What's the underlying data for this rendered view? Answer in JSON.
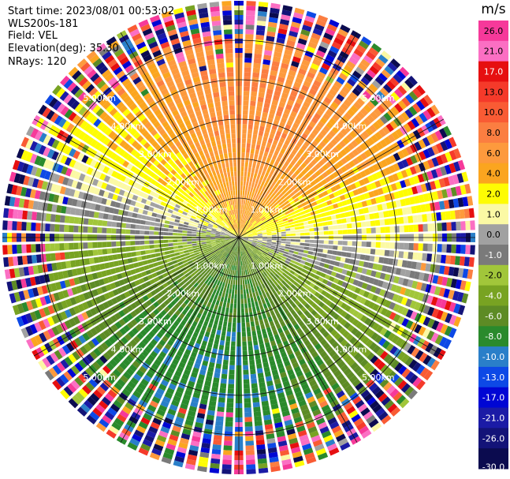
{
  "header": {
    "start_time": "Start time: 2023/08/01 00:53:02",
    "instrument": "WLS200s-181",
    "field": "Field: VEL",
    "elevation": "Elevation(deg): 35.30",
    "nrays": "NRays: 120"
  },
  "chart_data": {
    "type": "heatmap",
    "projection": "polar-ppi",
    "field": "VEL",
    "nrays": 120,
    "max_range_km": 6.0,
    "range_rings_km": [
      1.0,
      2.0,
      3.0,
      4.0,
      5.0
    ],
    "ring_labels": [
      "1.00km",
      "2.00km",
      "3.00km",
      "4.00km",
      "5.00km"
    ],
    "spokes_deg": [
      0,
      30,
      60,
      90,
      120,
      150,
      180,
      210,
      240,
      270,
      300,
      330
    ],
    "dominant_wind_pattern": "positive (orange/red) toward north, negative (blue/green) toward south",
    "colorbar": {
      "unit": "m/s",
      "range": [
        -30.0,
        30.0
      ],
      "ticks": [
        "26.0",
        "21.0",
        "17.0",
        "13.0",
        "10.0",
        "8.0",
        "6.0",
        "4.0",
        "2.0",
        "1.0",
        "0.0",
        "-1.0",
        "-2.0",
        "-4.0",
        "-6.0",
        "-8.0",
        "-10.0",
        "-13.0",
        "-17.0",
        "-21.0",
        "-26.0",
        "-30.0"
      ],
      "bins": [
        {
          "lo": 26,
          "hi": 30,
          "color": "#f6399a"
        },
        {
          "lo": 21,
          "hi": 26,
          "color": "#fb6fc3"
        },
        {
          "lo": 17,
          "hi": 21,
          "color": "#e60f10"
        },
        {
          "lo": 13,
          "hi": 17,
          "color": "#f53a2a"
        },
        {
          "lo": 10,
          "hi": 13,
          "color": "#f95b34"
        },
        {
          "lo": 8,
          "hi": 10,
          "color": "#fb7e41"
        },
        {
          "lo": 6,
          "hi": 8,
          "color": "#fd9a3d"
        },
        {
          "lo": 4,
          "hi": 6,
          "color": "#fba51f"
        },
        {
          "lo": 2,
          "hi": 4,
          "color": "#fefc03"
        },
        {
          "lo": 1,
          "hi": 2,
          "color": "#fbf9a4"
        },
        {
          "lo": 0,
          "hi": 1,
          "color": "#a1a1a1"
        },
        {
          "lo": -1,
          "hi": 0,
          "color": "#7a7a7a"
        },
        {
          "lo": -2,
          "hi": -1,
          "color": "#a1c63a"
        },
        {
          "lo": -4,
          "hi": -2,
          "color": "#78a322"
        },
        {
          "lo": -6,
          "hi": -4,
          "color": "#5d8b25"
        },
        {
          "lo": -8,
          "hi": -6,
          "color": "#2a8a2c"
        },
        {
          "lo": -10,
          "hi": -8,
          "color": "#2a7fc9"
        },
        {
          "lo": -13,
          "hi": -10,
          "color": "#0d49e6"
        },
        {
          "lo": -17,
          "hi": -13,
          "color": "#0006d4"
        },
        {
          "lo": -21,
          "hi": -17,
          "color": "#1b1ba6"
        },
        {
          "lo": -26,
          "hi": -21,
          "color": "#131378"
        },
        {
          "lo": -30,
          "hi": -26,
          "color": "#0b0b4f"
        }
      ]
    }
  }
}
